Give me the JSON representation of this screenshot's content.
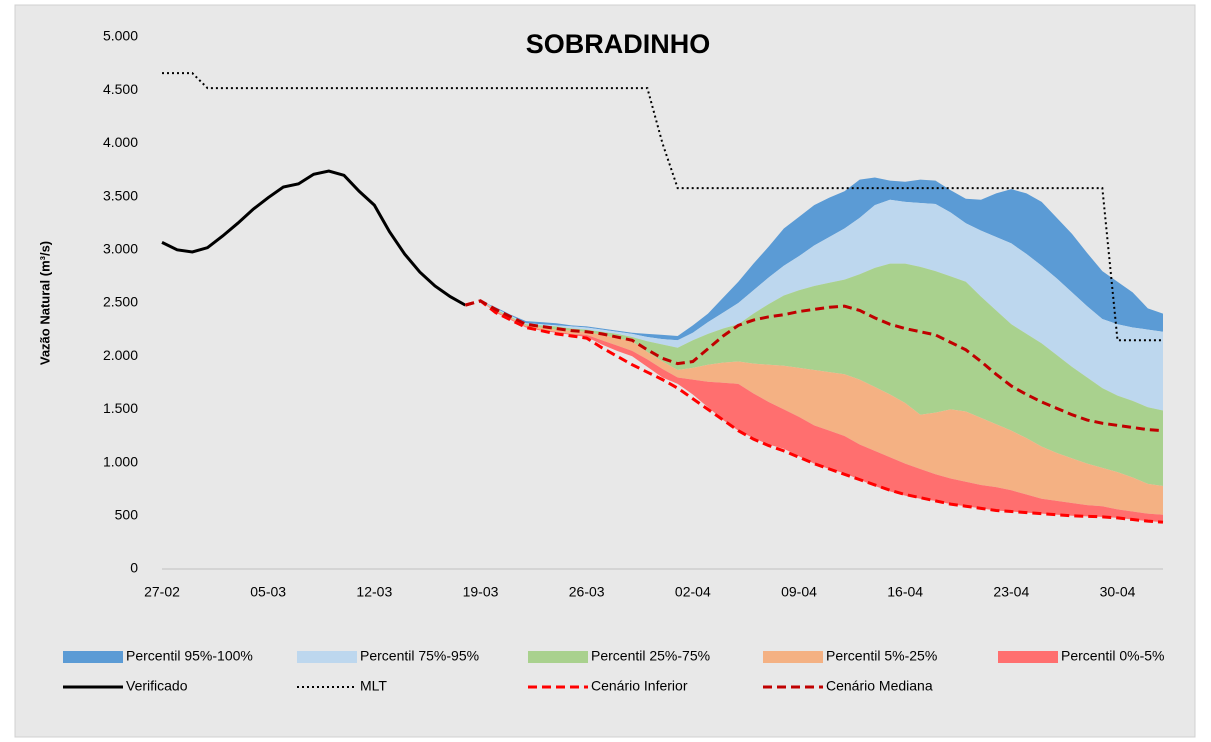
{
  "chart_data": {
    "type": "area",
    "title": "SOBRADINHO",
    "y_label": "Vazão Natural (m³/s)",
    "categories": [
      "27-02",
      null,
      null,
      null,
      null,
      null,
      null,
      "05-03",
      null,
      null,
      null,
      null,
      null,
      null,
      "12-03",
      null,
      null,
      null,
      null,
      null,
      null,
      "19-03",
      null,
      null,
      null,
      null,
      null,
      null,
      "26-03",
      null,
      null,
      null,
      null,
      null,
      null,
      "02-04",
      null,
      null,
      null,
      null,
      null,
      null,
      "09-04",
      null,
      null,
      null,
      null,
      null,
      null,
      "16-04",
      null,
      null,
      null,
      null,
      null,
      null,
      "23-04",
      null,
      null,
      null,
      null,
      null,
      null,
      "30-04",
      null,
      null,
      null
    ],
    "ylim": [
      0,
      5000
    ],
    "yticks": [
      0,
      500,
      {
        "value": 1000,
        "label": "1.000"
      },
      {
        "value": 1500,
        "label": "1.500"
      },
      {
        "value": 2000,
        "label": "2.000"
      },
      {
        "value": 2500,
        "label": "2.500"
      },
      {
        "value": 3000,
        "label": "3.000"
      },
      {
        "value": 3500,
        "label": "3.500"
      },
      {
        "value": 4000,
        "label": "4.000"
      },
      {
        "value": 4500,
        "label": "4.500"
      },
      {
        "value": 5000,
        "label": "5.000"
      }
    ],
    "grid": false,
    "series": [
      {
        "name": "Percentil 95%-100%",
        "color": "#5b9bd5",
        "kind": "band",
        "low": [
          null,
          null,
          null,
          null,
          null,
          null,
          null,
          null,
          null,
          null,
          null,
          null,
          null,
          null,
          null,
          null,
          null,
          null,
          null,
          null,
          null,
          2520,
          2450,
          2380,
          2310,
          2300,
          2290,
          2280,
          2270,
          2250,
          2230,
          2210,
          2180,
          2160,
          2150,
          2220,
          2320,
          2410,
          2500,
          2620,
          2740,
          2850,
          2940,
          3040,
          3120,
          3200,
          3300,
          3420,
          3470,
          3450,
          3440,
          3430,
          3350,
          3250,
          3180,
          3120,
          3060,
          2960,
          2850,
          2730,
          2600,
          2470,
          2350,
          2300,
          2270,
          2250,
          2230
        ],
        "high": [
          null,
          null,
          null,
          null,
          null,
          null,
          null,
          null,
          null,
          null,
          null,
          null,
          null,
          null,
          null,
          null,
          null,
          null,
          null,
          null,
          null,
          2520,
          2460,
          2390,
          2330,
          2320,
          2310,
          2290,
          2280,
          2260,
          2240,
          2220,
          2210,
          2200,
          2190,
          2290,
          2400,
          2550,
          2700,
          2870,
          3030,
          3200,
          3310,
          3420,
          3490,
          3550,
          3660,
          3680,
          3650,
          3640,
          3660,
          3650,
          3560,
          3480,
          3470,
          3530,
          3570,
          3530,
          3450,
          3300,
          3150,
          2970,
          2800,
          2700,
          2600,
          2450,
          2400
        ]
      },
      {
        "name": "Percentil 75%-95%",
        "color": "#bdd7ee",
        "kind": "band",
        "low": [
          null,
          null,
          null,
          null,
          null,
          null,
          null,
          null,
          null,
          null,
          null,
          null,
          null,
          null,
          null,
          null,
          null,
          null,
          null,
          null,
          null,
          2520,
          2440,
          2370,
          2300,
          2290,
          2280,
          2260,
          2250,
          2230,
          2210,
          2180,
          2140,
          2110,
          2080,
          2150,
          2210,
          2260,
          2300,
          2400,
          2490,
          2570,
          2620,
          2660,
          2690,
          2720,
          2770,
          2830,
          2870,
          2870,
          2840,
          2800,
          2750,
          2700,
          2560,
          2430,
          2300,
          2210,
          2120,
          2010,
          1900,
          1800,
          1700,
          1630,
          1580,
          1520,
          1490
        ],
        "high": [
          null,
          null,
          null,
          null,
          null,
          null,
          null,
          null,
          null,
          null,
          null,
          null,
          null,
          null,
          null,
          null,
          null,
          null,
          null,
          null,
          null,
          2520,
          2450,
          2380,
          2310,
          2300,
          2290,
          2280,
          2270,
          2250,
          2230,
          2210,
          2180,
          2160,
          2150,
          2220,
          2320,
          2410,
          2500,
          2620,
          2740,
          2850,
          2940,
          3040,
          3120,
          3200,
          3300,
          3420,
          3470,
          3450,
          3440,
          3430,
          3350,
          3250,
          3180,
          3120,
          3060,
          2960,
          2850,
          2730,
          2600,
          2470,
          2350,
          2300,
          2270,
          2250,
          2230
        ]
      },
      {
        "name": "Percentil 25%-75%",
        "color": "#a9d18e",
        "kind": "band",
        "low": [
          null,
          null,
          null,
          null,
          null,
          null,
          null,
          null,
          null,
          null,
          null,
          null,
          null,
          null,
          null,
          null,
          null,
          null,
          null,
          null,
          null,
          2520,
          2430,
          2360,
          2290,
          2270,
          2250,
          2240,
          2230,
          2200,
          2170,
          2140,
          2040,
          1950,
          1870,
          1890,
          1920,
          1940,
          1950,
          1930,
          1920,
          1910,
          1890,
          1870,
          1850,
          1830,
          1780,
          1710,
          1640,
          1560,
          1450,
          1470,
          1500,
          1480,
          1420,
          1360,
          1300,
          1230,
          1150,
          1090,
          1040,
          990,
          950,
          910,
          860,
          800,
          780
        ],
        "high": [
          null,
          null,
          null,
          null,
          null,
          null,
          null,
          null,
          null,
          null,
          null,
          null,
          null,
          null,
          null,
          null,
          null,
          null,
          null,
          null,
          null,
          2520,
          2440,
          2370,
          2300,
          2290,
          2280,
          2260,
          2250,
          2230,
          2210,
          2180,
          2140,
          2110,
          2080,
          2150,
          2210,
          2260,
          2300,
          2400,
          2490,
          2570,
          2620,
          2660,
          2690,
          2720,
          2770,
          2830,
          2870,
          2870,
          2840,
          2800,
          2750,
          2700,
          2560,
          2430,
          2300,
          2210,
          2120,
          2010,
          1900,
          1800,
          1700,
          1630,
          1580,
          1520,
          1490
        ]
      },
      {
        "name": "Percentil 5%-25%",
        "color": "#f4b183",
        "kind": "band",
        "low": [
          null,
          null,
          null,
          null,
          null,
          null,
          null,
          null,
          null,
          null,
          null,
          null,
          null,
          null,
          null,
          null,
          null,
          null,
          null,
          null,
          null,
          2520,
          2420,
          2350,
          2280,
          2250,
          2230,
          2210,
          2200,
          2150,
          2100,
          2050,
          1970,
          1880,
          1800,
          1780,
          1760,
          1750,
          1740,
          1650,
          1570,
          1500,
          1430,
          1350,
          1300,
          1250,
          1170,
          1110,
          1050,
          990,
          940,
          890,
          850,
          820,
          790,
          770,
          740,
          700,
          660,
          640,
          620,
          600,
          590,
          560,
          540,
          520,
          510
        ],
        "high": [
          null,
          null,
          null,
          null,
          null,
          null,
          null,
          null,
          null,
          null,
          null,
          null,
          null,
          null,
          null,
          null,
          null,
          null,
          null,
          null,
          null,
          2520,
          2430,
          2360,
          2290,
          2270,
          2250,
          2240,
          2230,
          2200,
          2170,
          2140,
          2040,
          1950,
          1870,
          1890,
          1920,
          1940,
          1950,
          1930,
          1920,
          1910,
          1890,
          1870,
          1850,
          1830,
          1780,
          1710,
          1640,
          1560,
          1450,
          1470,
          1500,
          1480,
          1420,
          1360,
          1300,
          1230,
          1150,
          1090,
          1040,
          990,
          950,
          910,
          860,
          800,
          780
        ]
      },
      {
        "name": "Percentil 0%-5%",
        "color": "#ff6f6f",
        "kind": "band",
        "low": [
          null,
          null,
          null,
          null,
          null,
          null,
          null,
          null,
          null,
          null,
          null,
          null,
          null,
          null,
          null,
          null,
          null,
          null,
          null,
          null,
          null,
          2520,
          2410,
          2340,
          2270,
          2240,
          2220,
          2200,
          2180,
          2110,
          2050,
          2000,
          1900,
          1800,
          1740,
          1640,
          1520,
          1400,
          1300,
          1230,
          1170,
          1130,
          1060,
          990,
          940,
          900,
          840,
          780,
          730,
          690,
          660,
          640,
          610,
          590,
          570,
          550,
          540,
          530,
          520,
          510,
          500,
          495,
          490,
          480,
          465,
          450,
          440
        ],
        "high": [
          null,
          null,
          null,
          null,
          null,
          null,
          null,
          null,
          null,
          null,
          null,
          null,
          null,
          null,
          null,
          null,
          null,
          null,
          null,
          null,
          null,
          2520,
          2420,
          2350,
          2280,
          2250,
          2230,
          2210,
          2200,
          2150,
          2100,
          2050,
          1970,
          1880,
          1800,
          1780,
          1760,
          1750,
          1740,
          1650,
          1570,
          1500,
          1430,
          1350,
          1300,
          1250,
          1170,
          1110,
          1050,
          990,
          940,
          890,
          850,
          820,
          790,
          770,
          740,
          700,
          660,
          640,
          620,
          600,
          590,
          560,
          540,
          520,
          510
        ]
      },
      {
        "name": "Verificado",
        "color": "#000000",
        "kind": "line",
        "dash": "solid",
        "values": [
          3070,
          3000,
          2980,
          3020,
          3130,
          3250,
          3380,
          3490,
          3590,
          3620,
          3710,
          3740,
          3700,
          3550,
          3420,
          3170,
          2960,
          2790,
          2660,
          2560,
          2480,
          null,
          null,
          null,
          null,
          null,
          null,
          null,
          null,
          null,
          null,
          null,
          null,
          null,
          null,
          null,
          null,
          null,
          null,
          null,
          null,
          null,
          null,
          null,
          null,
          null,
          null,
          null,
          null,
          null,
          null,
          null,
          null,
          null,
          null,
          null,
          null,
          null,
          null,
          null,
          null,
          null,
          null,
          null,
          null,
          null,
          null
        ]
      },
      {
        "name": "MLT",
        "color": "#000000",
        "kind": "line",
        "dash": "dotted",
        "values": [
          4660,
          4660,
          4660,
          4520,
          4520,
          4520,
          4520,
          4520,
          4520,
          4520,
          4520,
          4520,
          4520,
          4520,
          4520,
          4520,
          4520,
          4520,
          4520,
          4520,
          4520,
          4520,
          4520,
          4520,
          4520,
          4520,
          4520,
          4520,
          4520,
          4520,
          4520,
          4520,
          4520,
          4000,
          3580,
          3580,
          3580,
          3580,
          3580,
          3580,
          3580,
          3580,
          3580,
          3580,
          3580,
          3580,
          3580,
          3580,
          3580,
          3580,
          3580,
          3580,
          3580,
          3580,
          3580,
          3580,
          3580,
          3580,
          3580,
          3580,
          3580,
          3580,
          3580,
          2150,
          2150,
          2150,
          2150
        ]
      },
      {
        "name": "Cenário Inferior",
        "color": "#ff0000",
        "kind": "line",
        "dash": "dashed",
        "values": [
          null,
          null,
          null,
          null,
          null,
          null,
          null,
          null,
          null,
          null,
          null,
          null,
          null,
          null,
          null,
          null,
          null,
          null,
          null,
          null,
          2480,
          2520,
          2410,
          2340,
          2270,
          2240,
          2210,
          2190,
          2170,
          2080,
          2000,
          1920,
          1850,
          1780,
          1700,
          1600,
          1500,
          1400,
          1300,
          1220,
          1160,
          1110,
          1050,
          990,
          940,
          890,
          840,
          790,
          740,
          700,
          670,
          640,
          610,
          590,
          570,
          550,
          540,
          530,
          520,
          510,
          500,
          495,
          490,
          480,
          465,
          450,
          440
        ]
      },
      {
        "name": "Cenário Mediana",
        "color": "#c00000",
        "kind": "line",
        "dash": "dashed",
        "values": [
          null,
          null,
          null,
          null,
          null,
          null,
          null,
          null,
          null,
          null,
          null,
          null,
          null,
          null,
          null,
          null,
          null,
          null,
          null,
          null,
          2480,
          2520,
          2440,
          2370,
          2300,
          2280,
          2260,
          2240,
          2230,
          2210,
          2180,
          2150,
          2060,
          1980,
          1930,
          1950,
          2070,
          2190,
          2290,
          2340,
          2370,
          2390,
          2420,
          2440,
          2460,
          2470,
          2430,
          2360,
          2300,
          2260,
          2230,
          2200,
          2130,
          2060,
          1950,
          1830,
          1720,
          1640,
          1570,
          1510,
          1450,
          1400,
          1370,
          1350,
          1330,
          1310,
          1300
        ]
      }
    ]
  }
}
